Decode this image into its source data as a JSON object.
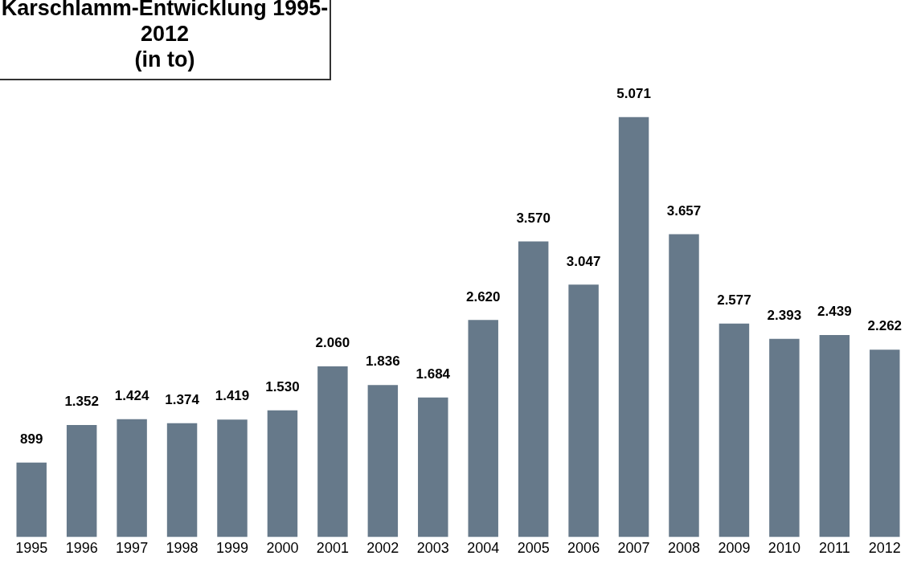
{
  "chart_data": {
    "type": "bar",
    "title": "Karschlamm-Entwicklung 1995-2012",
    "subtitle": "(in to)",
    "categories": [
      "1995",
      "1996",
      "1997",
      "1998",
      "1999",
      "2000",
      "2001",
      "2002",
      "2003",
      "2004",
      "2005",
      "2006",
      "2007",
      "2008",
      "2009",
      "2010",
      "2011",
      "2012"
    ],
    "values": [
      899,
      1352,
      1424,
      1374,
      1419,
      1530,
      2060,
      1836,
      1684,
      2620,
      3570,
      3047,
      5071,
      3657,
      2577,
      2393,
      2439,
      2262
    ],
    "value_labels": [
      "899",
      "1.352",
      "1.424",
      "1.374",
      "1.419",
      "1.530",
      "2.060",
      "1.836",
      "1.684",
      "2.620",
      "3.570",
      "3.047",
      "5.071",
      "3.657",
      "2.577",
      "2.393",
      "2.439",
      "2.262"
    ],
    "color": "#66798a",
    "grid": false,
    "legend": false,
    "tick_labels": "x"
  }
}
